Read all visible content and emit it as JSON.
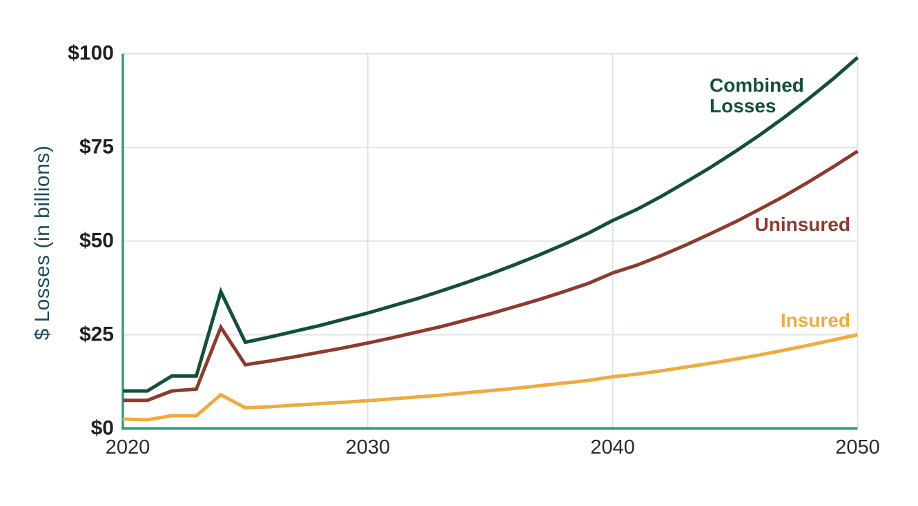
{
  "chart_data": {
    "type": "line",
    "title": "",
    "xlabel": "",
    "ylabel": "$ Losses (in billions)",
    "xlim": [
      2020,
      2050
    ],
    "ylim": [
      0,
      100
    ],
    "grid": true,
    "legend_position": "inline-right-of-lines",
    "background_color": "#ffffff",
    "axis_color": "#2f9e7d",
    "grid_color": "#dfe5e6",
    "y_tick_label_color": "#231f20",
    "x_tick_label_color": "#2b2a2b",
    "ylabel_color": "#1b4b5e",
    "x": [
      2020,
      2021,
      2022,
      2023,
      2024,
      2025,
      2026,
      2027,
      2028,
      2029,
      2030,
      2031,
      2032,
      2033,
      2034,
      2035,
      2036,
      2037,
      2038,
      2039,
      2040,
      2041,
      2042,
      2043,
      2044,
      2045,
      2046,
      2047,
      2048,
      2049,
      2050
    ],
    "x_ticks": [
      2020,
      2030,
      2040,
      2050
    ],
    "x_tick_labels": [
      "2020",
      "2030",
      "2040",
      "2050"
    ],
    "y_ticks": [
      0,
      25,
      50,
      75,
      100
    ],
    "y_tick_labels": [
      "$0",
      "$25",
      "$50",
      "$75",
      "$100"
    ],
    "series": [
      {
        "name": "Combined Losses",
        "label_text": "Combined\nLosses",
        "color": "#144f3a",
        "values": [
          10,
          10,
          14,
          14,
          36.5,
          23,
          24.4,
          25.9,
          27.4,
          29.1,
          30.8,
          32.7,
          34.6,
          36.7,
          38.9,
          41.2,
          43.7,
          46.3,
          49.1,
          52.1,
          55.5,
          58.5,
          62,
          65.8,
          69.7,
          73.9,
          78.3,
          83,
          88,
          93.3,
          99
        ]
      },
      {
        "name": "Uninsured",
        "label_text": "Uninsured",
        "color": "#8c3b2f",
        "values": [
          7.5,
          7.5,
          10,
          10.5,
          27,
          17,
          18,
          19.1,
          20.3,
          21.5,
          22.8,
          24.2,
          25.7,
          27.2,
          28.9,
          30.6,
          32.5,
          34.4,
          36.5,
          38.7,
          41.5,
          43.6,
          46.2,
          49,
          52,
          55.1,
          58.5,
          62,
          65.8,
          69.8,
          74
        ]
      },
      {
        "name": "Insured",
        "label_text": "Insured",
        "color": "#eeab3f",
        "values": [
          2.5,
          2.3,
          3.4,
          3.4,
          9,
          5.5,
          5.8,
          6.2,
          6.6,
          7,
          7.4,
          7.9,
          8.4,
          8.9,
          9.5,
          10.1,
          10.7,
          11.4,
          12.1,
          12.8,
          13.8,
          14.5,
          15.4,
          16.4,
          17.4,
          18.5,
          19.6,
          20.9,
          22.2,
          23.6,
          25
        ]
      }
    ]
  }
}
